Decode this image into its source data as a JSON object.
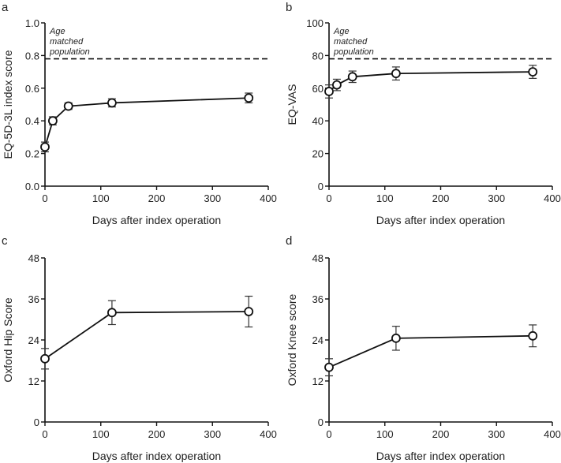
{
  "chart_data": [
    {
      "panel": "a",
      "type": "line",
      "xlabel": "Days after index operation",
      "ylabel": "EQ-5D-3L index score",
      "xlim": [
        0,
        400
      ],
      "ylim": [
        0,
        1.0
      ],
      "xticks": [
        "0",
        "100",
        "200",
        "300",
        "400"
      ],
      "yticks": [
        "0.0",
        "0.2",
        "0.4",
        "0.6",
        "0.8",
        "1.0"
      ],
      "x": [
        0,
        14,
        42,
        120,
        365
      ],
      "y": [
        0.24,
        0.4,
        0.49,
        0.51,
        0.54
      ],
      "err": [
        0.03,
        0.025,
        0.02,
        0.025,
        0.03
      ],
      "reference": {
        "value": 0.78,
        "label": [
          "Age",
          "matched",
          "population"
        ]
      }
    },
    {
      "panel": "b",
      "type": "line",
      "xlabel": "Days after index operation",
      "ylabel": "EQ-VAS",
      "xlim": [
        0,
        400
      ],
      "ylim": [
        0,
        100
      ],
      "xticks": [
        "0",
        "100",
        "200",
        "300",
        "400"
      ],
      "yticks": [
        "0",
        "20",
        "40",
        "60",
        "80",
        "100"
      ],
      "x": [
        0,
        14,
        42,
        120,
        365
      ],
      "y": [
        58,
        62,
        67,
        69,
        70
      ],
      "err": [
        4,
        3.5,
        3.5,
        4,
        4
      ],
      "reference": {
        "value": 78,
        "label": [
          "Age",
          "matched",
          "population"
        ]
      }
    },
    {
      "panel": "c",
      "type": "line",
      "xlabel": "Days after index operation",
      "ylabel": "Oxford Hip Score",
      "xlim": [
        0,
        400
      ],
      "ylim": [
        0,
        48
      ],
      "xticks": [
        "0",
        "100",
        "200",
        "300",
        "400"
      ],
      "yticks": [
        "0",
        "12",
        "24",
        "36",
        "48"
      ],
      "x": [
        0,
        120,
        365
      ],
      "y": [
        18.5,
        32,
        32.3
      ],
      "err": [
        3,
        3.5,
        4.5
      ]
    },
    {
      "panel": "d",
      "type": "line",
      "xlabel": "Days after index operation",
      "ylabel": "Oxford Knee score",
      "xlim": [
        0,
        400
      ],
      "ylim": [
        0,
        48
      ],
      "xticks": [
        "0",
        "100",
        "200",
        "300",
        "400"
      ],
      "yticks": [
        "0",
        "12",
        "24",
        "36",
        "48"
      ],
      "x": [
        0,
        120,
        365
      ],
      "y": [
        16,
        24.5,
        25.2
      ],
      "err": [
        2.5,
        3.5,
        3.2
      ]
    }
  ]
}
